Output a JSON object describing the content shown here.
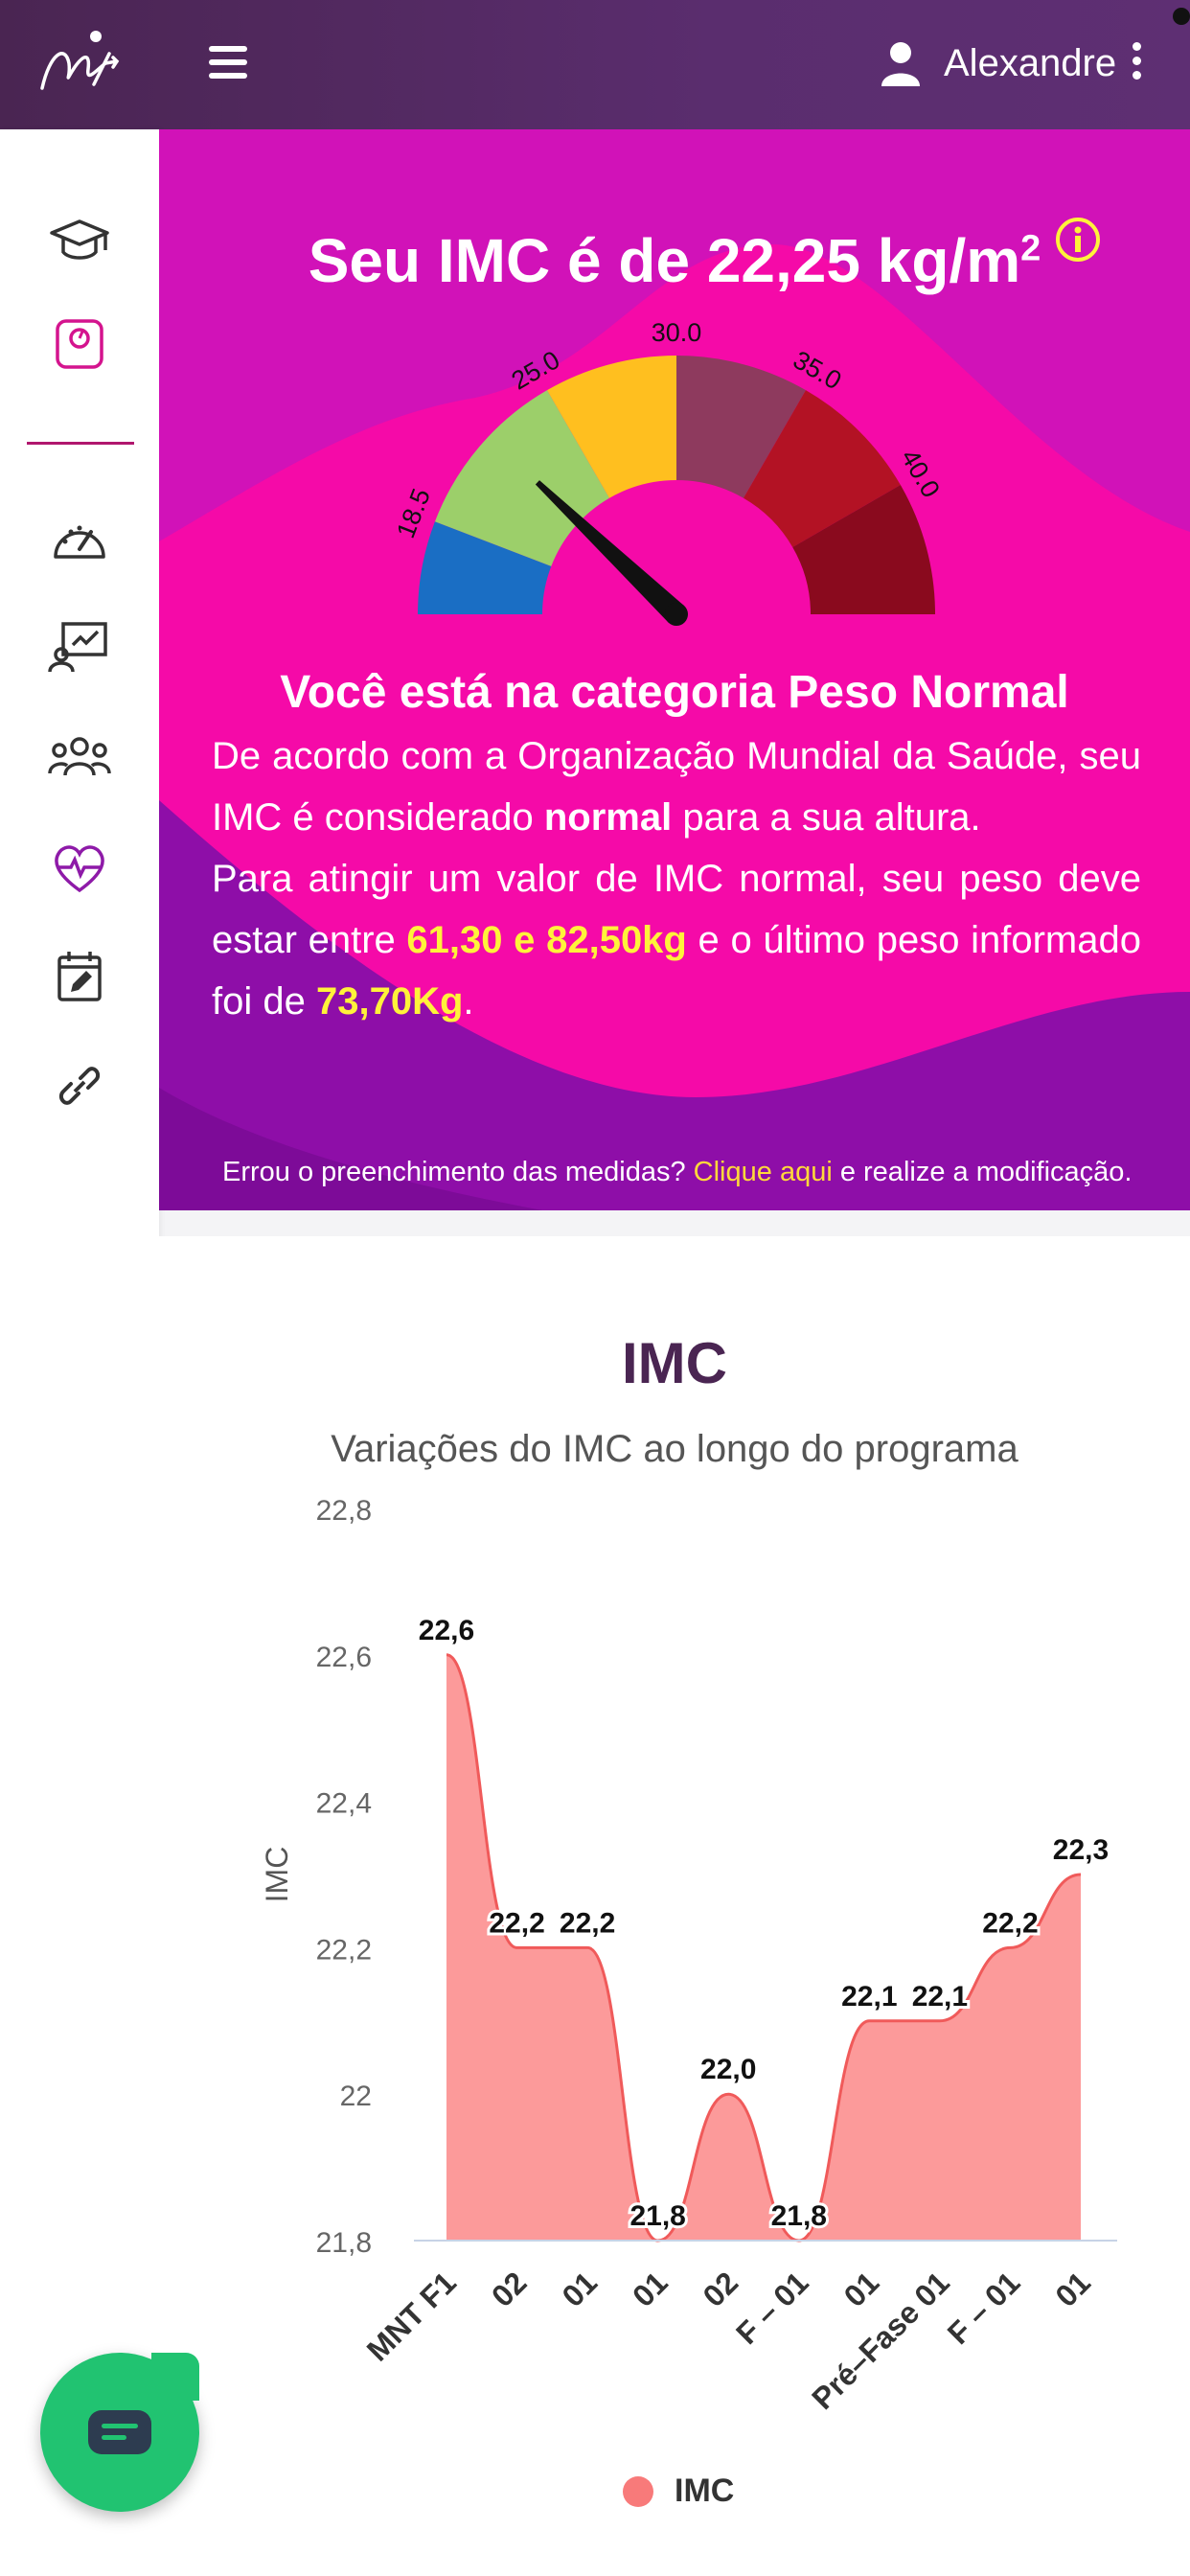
{
  "header": {
    "user_name": "Alexandre"
  },
  "sidebar": {
    "icons": [
      "graduation-cap-icon",
      "scale-icon",
      "speedometer-icon",
      "presentation-icon",
      "group-icon",
      "heart-pulse-icon",
      "calendar-edit-icon",
      "link-icon"
    ]
  },
  "hero": {
    "title_prefix": "Seu IMC é de 22,25 kg/m",
    "title_sup": "2",
    "gauge_labels": [
      "18.5",
      "25.0",
      "30.0",
      "35.0",
      "40.0"
    ],
    "gauge_value": 22.25,
    "category": "Você está na categoria Peso Normal",
    "p1_a": "De acordo com a Organização Mundial da Saúde, seu IMC é considerado ",
    "p1_b": "normal",
    "p1_c": " para a sua altura.",
    "p2_a": "Para atingir um valor de IMC normal, seu peso deve estar entre ",
    "p2_range": "61,30 e 82,50kg",
    "p2_b": " e o último peso informado foi de ",
    "p2_weight": "73,70Kg",
    "p2_end": ".",
    "note_a": "Errou o preenchimento das medidas? ",
    "note_link": "Clique aqui",
    "note_b": " e realize a modificação."
  },
  "colors": {
    "header": "#4a2552",
    "hero_pink": "#f40aa8",
    "hero_purple": "#8e0ea8",
    "chart_fill": "#fc9a9a",
    "chart_line": "#f05a5a",
    "highlight": "#fff23a",
    "chat": "#21c371"
  },
  "chart_data": {
    "type": "area",
    "title": "IMC",
    "subtitle": "Variações do IMC ao longo do programa",
    "ylabel": "IMC",
    "ylim": [
      21.8,
      22.8
    ],
    "yticks": [
      "22,8",
      "22,6",
      "22,4",
      "22,2",
      "22",
      "21,8"
    ],
    "categories": [
      "MNT F1",
      "02",
      "01",
      "01",
      "02",
      "F – 01",
      "01",
      "Pré–Fase 01",
      "F – 01",
      "01"
    ],
    "series": [
      {
        "name": "IMC",
        "values": [
          22.6,
          22.2,
          22.2,
          21.8,
          22.0,
          21.8,
          22.1,
          22.1,
          22.2,
          22.3
        ],
        "labels": [
          "22,6",
          "22,2",
          "22,2",
          "21,8",
          "22,0",
          "21,8",
          "22,1",
          "22,1",
          "22,2",
          "22,3"
        ]
      }
    ],
    "legend": "bottom-center"
  }
}
